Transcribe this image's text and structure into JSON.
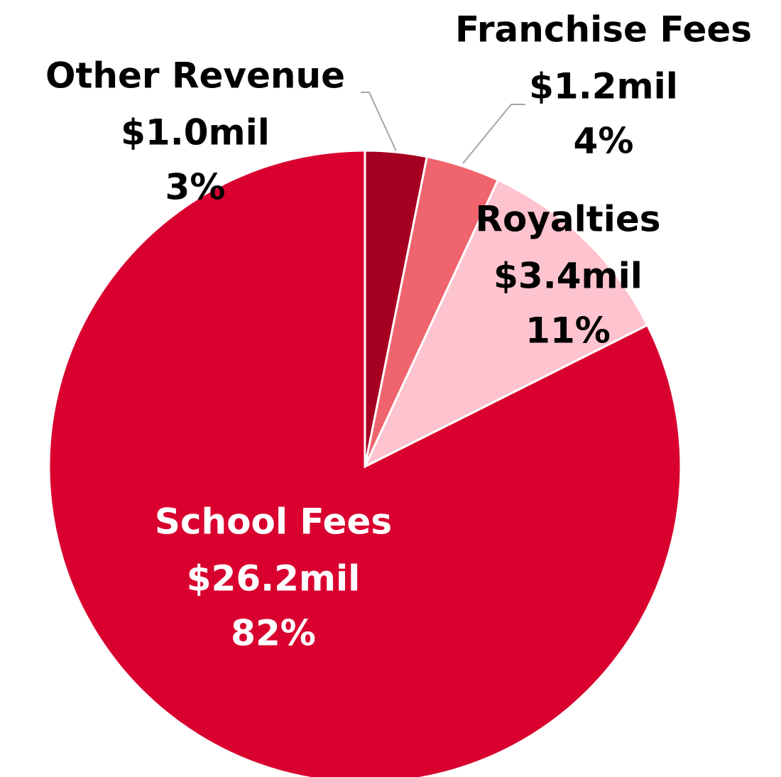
{
  "chart_data": {
    "type": "pie",
    "categories": [
      "Other Revenue",
      "Franchise Fees",
      "Royalties",
      "School Fees"
    ],
    "values": [
      1.0,
      1.2,
      3.4,
      26.2
    ],
    "value_labels": [
      "$1.0mil",
      "$1.2mil",
      "$3.4mil",
      "$26.2mil"
    ],
    "percents": [
      3,
      4,
      11,
      82
    ],
    "percent_labels": [
      "3%",
      "4%",
      "11%",
      "82%"
    ],
    "colors": [
      "#a50021",
      "#f0646e",
      "#fdc4cf",
      "#d9002f"
    ]
  }
}
